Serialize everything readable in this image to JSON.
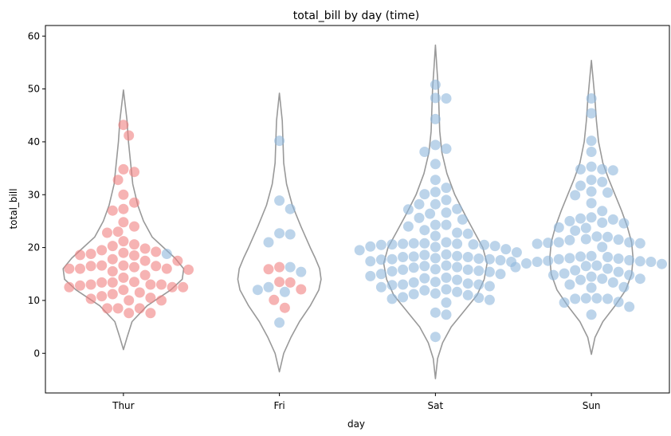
{
  "chart_data": {
    "type": "violin-swarm",
    "title": "total_bill by day (time)",
    "xlabel": "day",
    "ylabel": "total_bill",
    "categories": [
      "Thur",
      "Fri",
      "Sat",
      "Sun"
    ],
    "ylim": [
      -7.5,
      62
    ],
    "yticks": [
      0,
      10,
      20,
      30,
      40,
      50,
      60
    ],
    "grid": false,
    "legend": "none",
    "colors": {
      "Lunch": "#f08080",
      "Dinner": "#8fb8dc",
      "violin": "#999999"
    },
    "violins": [
      {
        "day": "Thur",
        "min": 0.7,
        "max": 49.8,
        "profile": [
          [
            0.7,
            0.0
          ],
          [
            3,
            0.05
          ],
          [
            6,
            0.12
          ],
          [
            9,
            0.33
          ],
          [
            12,
            0.66
          ],
          [
            14,
            0.82
          ],
          [
            16,
            0.84
          ],
          [
            18,
            0.72
          ],
          [
            20,
            0.56
          ],
          [
            22,
            0.4
          ],
          [
            25,
            0.28
          ],
          [
            28,
            0.2
          ],
          [
            32,
            0.13
          ],
          [
            36,
            0.1
          ],
          [
            40,
            0.07
          ],
          [
            44,
            0.05
          ],
          [
            49.8,
            0.0
          ]
        ]
      },
      {
        "day": "Fri",
        "min": -3.5,
        "max": 49.2,
        "profile": [
          [
            -3.5,
            0.0
          ],
          [
            0,
            0.06
          ],
          [
            3,
            0.16
          ],
          [
            6,
            0.28
          ],
          [
            9,
            0.43
          ],
          [
            12,
            0.55
          ],
          [
            14,
            0.58
          ],
          [
            16,
            0.56
          ],
          [
            18,
            0.5
          ],
          [
            20,
            0.43
          ],
          [
            24,
            0.3
          ],
          [
            28,
            0.18
          ],
          [
            32,
            0.1
          ],
          [
            36,
            0.06
          ],
          [
            40,
            0.05
          ],
          [
            44,
            0.04
          ],
          [
            49.2,
            0.0
          ]
        ]
      },
      {
        "day": "Sat",
        "min": -4.8,
        "max": 58.3,
        "profile": [
          [
            -4.8,
            0.0
          ],
          [
            -1,
            0.03
          ],
          [
            2,
            0.1
          ],
          [
            5,
            0.22
          ],
          [
            8,
            0.4
          ],
          [
            11,
            0.58
          ],
          [
            14,
            0.68
          ],
          [
            17,
            0.72
          ],
          [
            20,
            0.66
          ],
          [
            23,
            0.54
          ],
          [
            26,
            0.42
          ],
          [
            30,
            0.27
          ],
          [
            34,
            0.16
          ],
          [
            38,
            0.09
          ],
          [
            42,
            0.06
          ],
          [
            46,
            0.05
          ],
          [
            50,
            0.04
          ],
          [
            54,
            0.02
          ],
          [
            58.3,
            0.0
          ]
        ]
      },
      {
        "day": "Sun",
        "min": -0.2,
        "max": 55.4,
        "profile": [
          [
            -0.2,
            0.0
          ],
          [
            3,
            0.05
          ],
          [
            6,
            0.16
          ],
          [
            9,
            0.33
          ],
          [
            12,
            0.48
          ],
          [
            15,
            0.56
          ],
          [
            18,
            0.58
          ],
          [
            21,
            0.56
          ],
          [
            24,
            0.5
          ],
          [
            27,
            0.42
          ],
          [
            30,
            0.33
          ],
          [
            33,
            0.24
          ],
          [
            36,
            0.16
          ],
          [
            40,
            0.1
          ],
          [
            44,
            0.07
          ],
          [
            48,
            0.05
          ],
          [
            55.4,
            0.0
          ]
        ]
      }
    ],
    "points": [
      {
        "day": "Thur",
        "time": "Lunch",
        "y": [
          7.6,
          7.6,
          8.5,
          8.5,
          8.5,
          10.0,
          10.0,
          10.3,
          10.5,
          10.8,
          11.2,
          11.5,
          12.0,
          12.5,
          12.5,
          12.5,
          12.8,
          13.0,
          13.0,
          13.0,
          13.4,
          13.4,
          13.5,
          14.3,
          14.8,
          15.5,
          15.8,
          16.0,
          16.0,
          16.0,
          16.3,
          16.5,
          16.5,
          16.6,
          16.6,
          17.5,
          17.5,
          17.8,
          18.5,
          18.6,
          18.8,
          19.0,
          19.2,
          19.5,
          19.8,
          20.3,
          20.6,
          21.2,
          22.8,
          23.0,
          24.0,
          24.8,
          27.0,
          27.3,
          28.5,
          30.0,
          32.8,
          34.3,
          34.8,
          41.2,
          43.2
        ]
      },
      {
        "day": "Thur",
        "time": "Dinner",
        "y": [
          18.8
        ]
      },
      {
        "day": "Fri",
        "time": "Lunch",
        "y": [
          8.6,
          10.1,
          12.1,
          13.4,
          13.5,
          15.9,
          16.3
        ]
      },
      {
        "day": "Fri",
        "time": "Dinner",
        "y": [
          5.8,
          11.6,
          12.0,
          12.5,
          15.4,
          16.3,
          21.0,
          22.5,
          22.7,
          27.3,
          28.9,
          40.2
        ]
      },
      {
        "day": "Sat",
        "time": "Dinner",
        "y": [
          3.1,
          7.3,
          7.7,
          9.6,
          10.1,
          10.3,
          10.5,
          10.6,
          11.0,
          11.2,
          11.3,
          11.6,
          11.9,
          12.1,
          12.5,
          12.7,
          12.9,
          13.0,
          13.0,
          13.2,
          13.4,
          13.5,
          13.9,
          14.2,
          14.3,
          14.6,
          15.0,
          15.0,
          15.4,
          15.5,
          15.6,
          15.8,
          15.8,
          15.9,
          16.2,
          16.3,
          16.5,
          16.6,
          17.3,
          17.4,
          17.6,
          17.7,
          17.8,
          17.8,
          17.9,
          18.0,
          18.2,
          18.2,
          18.3,
          18.4,
          18.6,
          18.7,
          19.1,
          19.5,
          19.7,
          20.1,
          20.2,
          20.3,
          20.5,
          20.5,
          20.6,
          20.6,
          20.7,
          20.7,
          20.8,
          20.8,
          21.0,
          22.2,
          22.6,
          22.8,
          23.3,
          24.0,
          24.3,
          24.3,
          25.3,
          25.6,
          26.4,
          26.6,
          27.2,
          27.3,
          28.2,
          28.2,
          29.0,
          30.1,
          30.5,
          31.3,
          32.8,
          35.8,
          38.1,
          38.7,
          39.4,
          44.3,
          48.2,
          48.3,
          50.8
        ]
      },
      {
        "day": "Sun",
        "time": "Dinner",
        "y": [
          7.3,
          8.8,
          9.6,
          9.7,
          10.3,
          10.3,
          10.4,
          10.4,
          12.4,
          12.5,
          13.0,
          13.4,
          13.9,
          14.1,
          14.1,
          14.5,
          14.8,
          14.8,
          15.1,
          15.4,
          15.7,
          16.0,
          16.3,
          16.5,
          16.6,
          16.9,
          17.0,
          17.3,
          17.3,
          17.4,
          17.5,
          17.6,
          17.8,
          17.9,
          18.0,
          18.2,
          18.3,
          18.4,
          20.1,
          20.7,
          20.8,
          20.9,
          21.0,
          21.0,
          21.4,
          21.5,
          21.6,
          22.0,
          22.1,
          23.2,
          23.7,
          23.8,
          24.6,
          24.7,
          25.0,
          25.3,
          25.5,
          25.7,
          26.9,
          28.4,
          29.9,
          30.4,
          30.6,
          31.7,
          32.4,
          32.8,
          34.6,
          34.8,
          34.8,
          35.3,
          38.1,
          40.2,
          45.4,
          48.2
        ]
      }
    ]
  }
}
